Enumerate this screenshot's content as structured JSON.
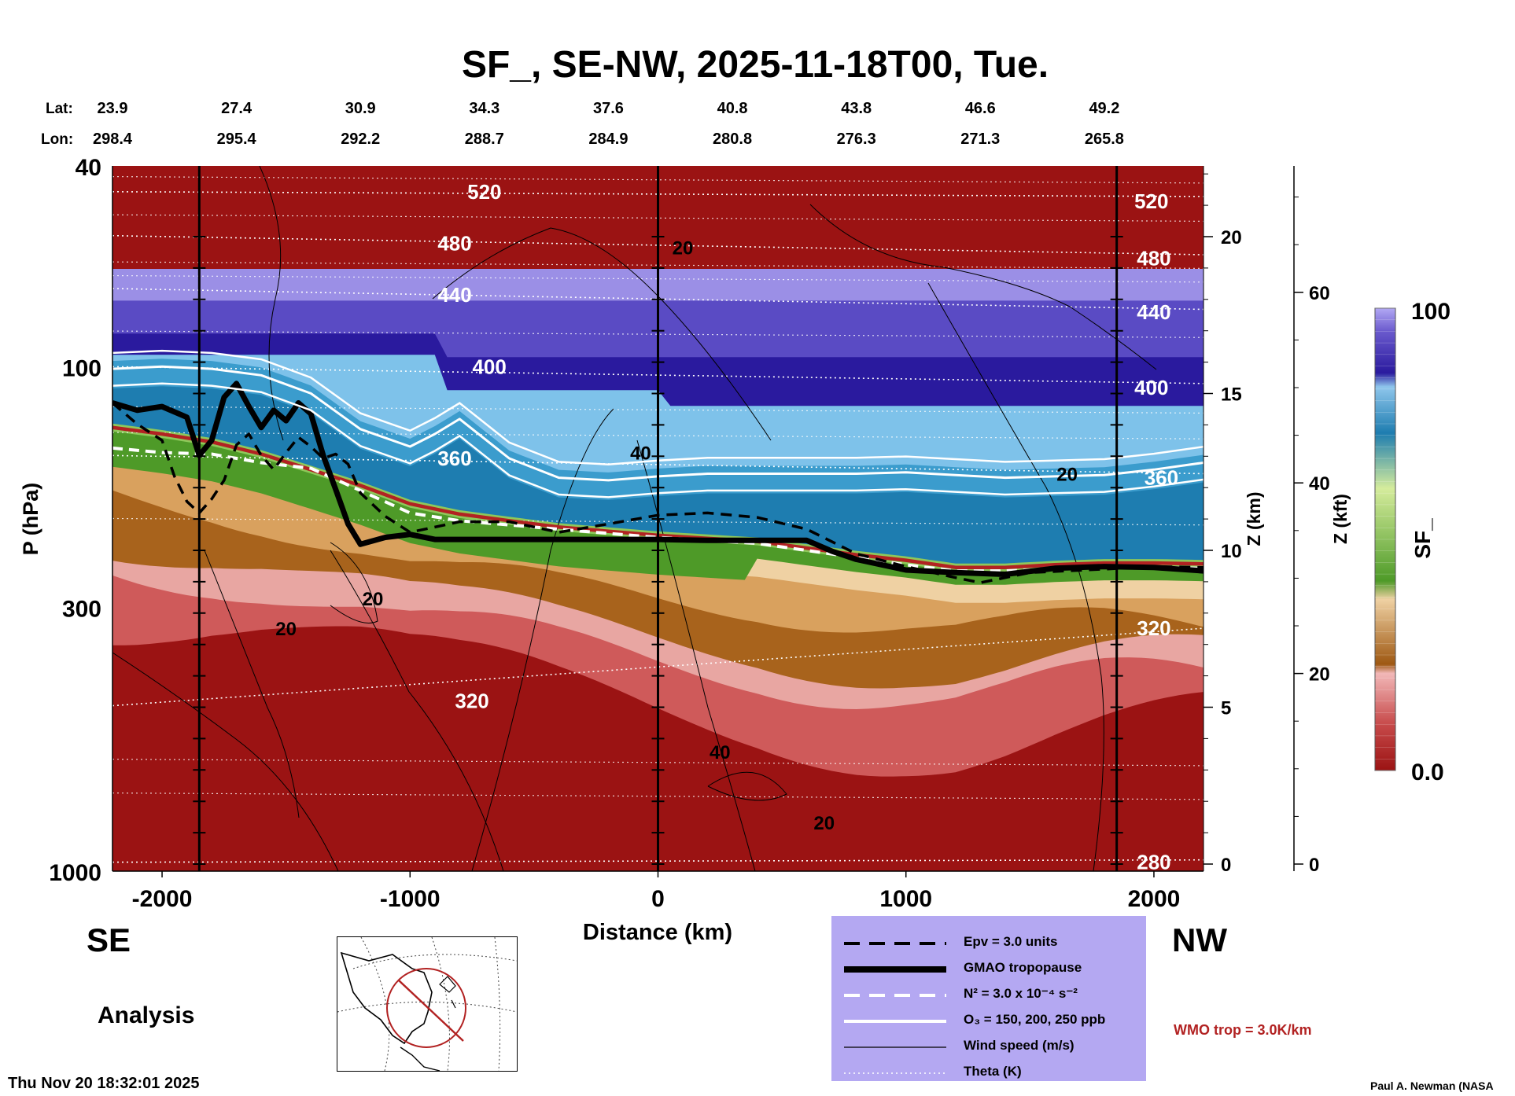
{
  "chart_data": {
    "type": "heatmap",
    "title": "SF_, SE-NW, 2025-11-18T00, Tue.",
    "xlabel": "Distance (km)",
    "ylabel": "P (hPa)",
    "y2label": "Z (km)",
    "y3label": "Z (kft)",
    "colorbar_label": "SF_",
    "xlim": [
      -2200,
      2200
    ],
    "ylim": [
      1000,
      40
    ],
    "y_scale": "log",
    "x_ticks": [
      -2000,
      -1000,
      0,
      1000,
      2000
    ],
    "x_tick_labels": [
      "-2000",
      "-1000",
      "0",
      "1000",
      "2000"
    ],
    "y_ticks": [
      40,
      100,
      300,
      1000
    ],
    "y_tick_labels": [
      "40",
      "100",
      "300",
      "1000"
    ],
    "z_km_ticks": [
      0,
      5,
      10,
      15,
      20
    ],
    "z_km_tick_labels": [
      "0",
      "5",
      "10",
      "15",
      "20"
    ],
    "z_kft_ticks": [
      0,
      20,
      40,
      60
    ],
    "z_kft_tick_labels": [
      "0",
      "20",
      "40",
      "60"
    ],
    "colorbar_range": [
      0.0,
      100
    ],
    "colorbar_tick_labels": [
      "100",
      "0.0"
    ],
    "lat_label": "Lat:",
    "lon_label": "Lon:",
    "lat_lon_stations": [
      {
        "x": -2200,
        "lat": "23.9",
        "lon": "298.4"
      },
      {
        "x": -1700,
        "lat": "27.4",
        "lon": "295.4"
      },
      {
        "x": -1200,
        "lat": "30.9",
        "lon": "292.2"
      },
      {
        "x": -700,
        "lat": "34.3",
        "lon": "288.7"
      },
      {
        "x": -200,
        "lat": "37.6",
        "lon": "284.9"
      },
      {
        "x": 300,
        "lat": "40.8",
        "lon": "280.8"
      },
      {
        "x": 800,
        "lat": "43.8",
        "lon": "276.3"
      },
      {
        "x": 1300,
        "lat": "46.6",
        "lon": "271.3"
      },
      {
        "x": 1800,
        "lat": "49.2",
        "lon": "265.8"
      }
    ],
    "vertical_lines_x": [
      -1850,
      0,
      1850
    ],
    "theta_contour_labels": [
      {
        "text": "520",
        "x": -700,
        "p": 45
      },
      {
        "text": "480",
        "x": -820,
        "p": 57
      },
      {
        "text": "440",
        "x": -820,
        "p": 72
      },
      {
        "text": "400",
        "x": -680,
        "p": 100
      },
      {
        "text": "360",
        "x": -820,
        "p": 152
      },
      {
        "text": "320",
        "x": -750,
        "p": 460
      },
      {
        "text": "520",
        "x": 1990,
        "p": 47
      },
      {
        "text": "480",
        "x": 2000,
        "p": 61
      },
      {
        "text": "440",
        "x": 2000,
        "p": 78
      },
      {
        "text": "400",
        "x": 1990,
        "p": 110
      },
      {
        "text": "360",
        "x": 2030,
        "p": 166
      },
      {
        "text": "320",
        "x": 2000,
        "p": 330
      },
      {
        "text": "280",
        "x": 2000,
        "p": 960
      }
    ],
    "wind_contour_labels": [
      {
        "text": "20",
        "x": 100,
        "p": 58
      },
      {
        "text": "20",
        "x": 1650,
        "p": 163
      },
      {
        "text": "40",
        "x": -70,
        "p": 148
      },
      {
        "text": "20",
        "x": -1150,
        "p": 288
      },
      {
        "text": "20",
        "x": -1500,
        "p": 330
      },
      {
        "text": "40",
        "x": 250,
        "p": 580
      },
      {
        "text": "20",
        "x": 670,
        "p": 800
      }
    ],
    "series": [
      {
        "name": "GMAO tropopause",
        "x": [
          -2200,
          -2100,
          -2000,
          -1900,
          -1850,
          -1800,
          -1750,
          -1700,
          -1650,
          -1600,
          -1550,
          -1500,
          -1450,
          -1400,
          -1350,
          -1300,
          -1250,
          -1200,
          -1100,
          -1000,
          -900,
          -700,
          -500,
          -300,
          -100,
          0,
          200,
          400,
          600,
          700,
          800,
          1000,
          1200,
          1400,
          1600,
          1800,
          2000,
          2200
        ],
        "p": [
          118,
          122,
          120,
          126,
          150,
          140,
          115,
          108,
          120,
          132,
          122,
          128,
          118,
          124,
          150,
          175,
          205,
          225,
          218,
          215,
          220,
          220,
          220,
          220,
          220,
          220,
          221,
          221,
          221,
          232,
          241,
          253,
          256,
          258,
          251,
          249,
          250,
          254
        ]
      },
      {
        "name": "Epv = 3.0 units",
        "x": [
          -2200,
          -2100,
          -2000,
          -1950,
          -1900,
          -1850,
          -1800,
          -1750,
          -1700,
          -1650,
          -1600,
          -1550,
          -1500,
          -1450,
          -1400,
          -1350,
          -1300,
          -1250,
          -1200,
          -1100,
          -1000,
          -900,
          -800,
          -600,
          -400,
          -200,
          0,
          200,
          400,
          600,
          800,
          1000,
          1200,
          1300,
          1500,
          1800,
          2000,
          2200
        ],
        "p": [
          118,
          130,
          140,
          165,
          185,
          195,
          183,
          168,
          143,
          136,
          150,
          160,
          148,
          138,
          144,
          152,
          149,
          156,
          178,
          198,
          213,
          208,
          203,
          203,
          213,
          205,
          197,
          195,
          199,
          210,
          235,
          249,
          262,
          268,
          256,
          252,
          249,
          250
        ]
      },
      {
        "name": "N² = 3.0 x 10⁻⁴ s⁻²",
        "x": [
          -2200,
          -2000,
          -1800,
          -1600,
          -1400,
          -1200,
          -1000,
          -800,
          -600,
          -400,
          -200,
          0,
          400,
          800,
          1000,
          1200,
          1400,
          1600,
          1800,
          2000,
          2200
        ],
        "p": [
          145,
          148,
          149,
          155,
          159,
          176,
          195,
          202,
          206,
          210,
          214,
          218,
          224,
          239,
          247,
          254,
          254,
          252,
          250,
          250,
          251
        ]
      },
      {
        "name": "WMO trop = 3.0K/km",
        "x": [
          -2200,
          -2000,
          -1800,
          -1600,
          -1400,
          -1200,
          -1000,
          -800,
          -600,
          -400,
          -200,
          0,
          400,
          800,
          1000,
          1200,
          1400,
          1600,
          1800,
          2000,
          2200
        ],
        "p": [
          132,
          136,
          141,
          149,
          160,
          172,
          187,
          196,
          202,
          208,
          212,
          216,
          222,
          236,
          242,
          250,
          250,
          247,
          245,
          245,
          246
        ]
      },
      {
        "name": "O₃ = 150, 200, 250 ppb",
        "x": [
          -2200,
          -2000,
          -1800,
          -1600,
          -1400,
          -1200,
          -1000,
          -900,
          -800,
          -600,
          -400,
          -200,
          0,
          200,
          400,
          600,
          800,
          1000,
          1200,
          1400,
          1600,
          1800,
          2000,
          2200
        ],
        "p": [
          101,
          100,
          101,
          104,
          113,
          133,
          144,
          136,
          127,
          152,
          166,
          168,
          165,
          163,
          163,
          163,
          163,
          162,
          164,
          166,
          165,
          164,
          160,
          155
        ]
      }
    ],
    "legend_placement": "bottom-center",
    "legend": [
      {
        "style": "dashed",
        "color": "#000000",
        "label": "Epv = 3.0 units"
      },
      {
        "style": "thick",
        "color": "#000000",
        "label": "GMAO tropopause"
      },
      {
        "style": "dashed",
        "color": "#ffffff",
        "label": "N² = 3.0 x 10⁻⁴ s⁻²"
      },
      {
        "style": "solid",
        "color": "#ffffff",
        "label": "O₃ = 150, 200, 250 ppb"
      },
      {
        "style": "thin",
        "color": "#000000",
        "label": "Wind speed (m/s)"
      },
      {
        "style": "dotted",
        "color": "#ffffff",
        "label": "Theta (K)"
      }
    ],
    "wmo_note": "WMO trop = 3.0K/km",
    "colors": {
      "troposphere": "#9b1313",
      "high_values": "#b2a8f4",
      "wmo_line": "#b22222",
      "legend_bg": "#b4a8f2"
    }
  },
  "labels": {
    "direction_left": "SE",
    "direction_right": "NW",
    "analysis": "Analysis",
    "timestamp": "Thu Nov 20 18:32:01 2025",
    "credit": "Paul A. Newman (NASA"
  },
  "inset_map": {
    "icon": "globe-map-icon"
  }
}
